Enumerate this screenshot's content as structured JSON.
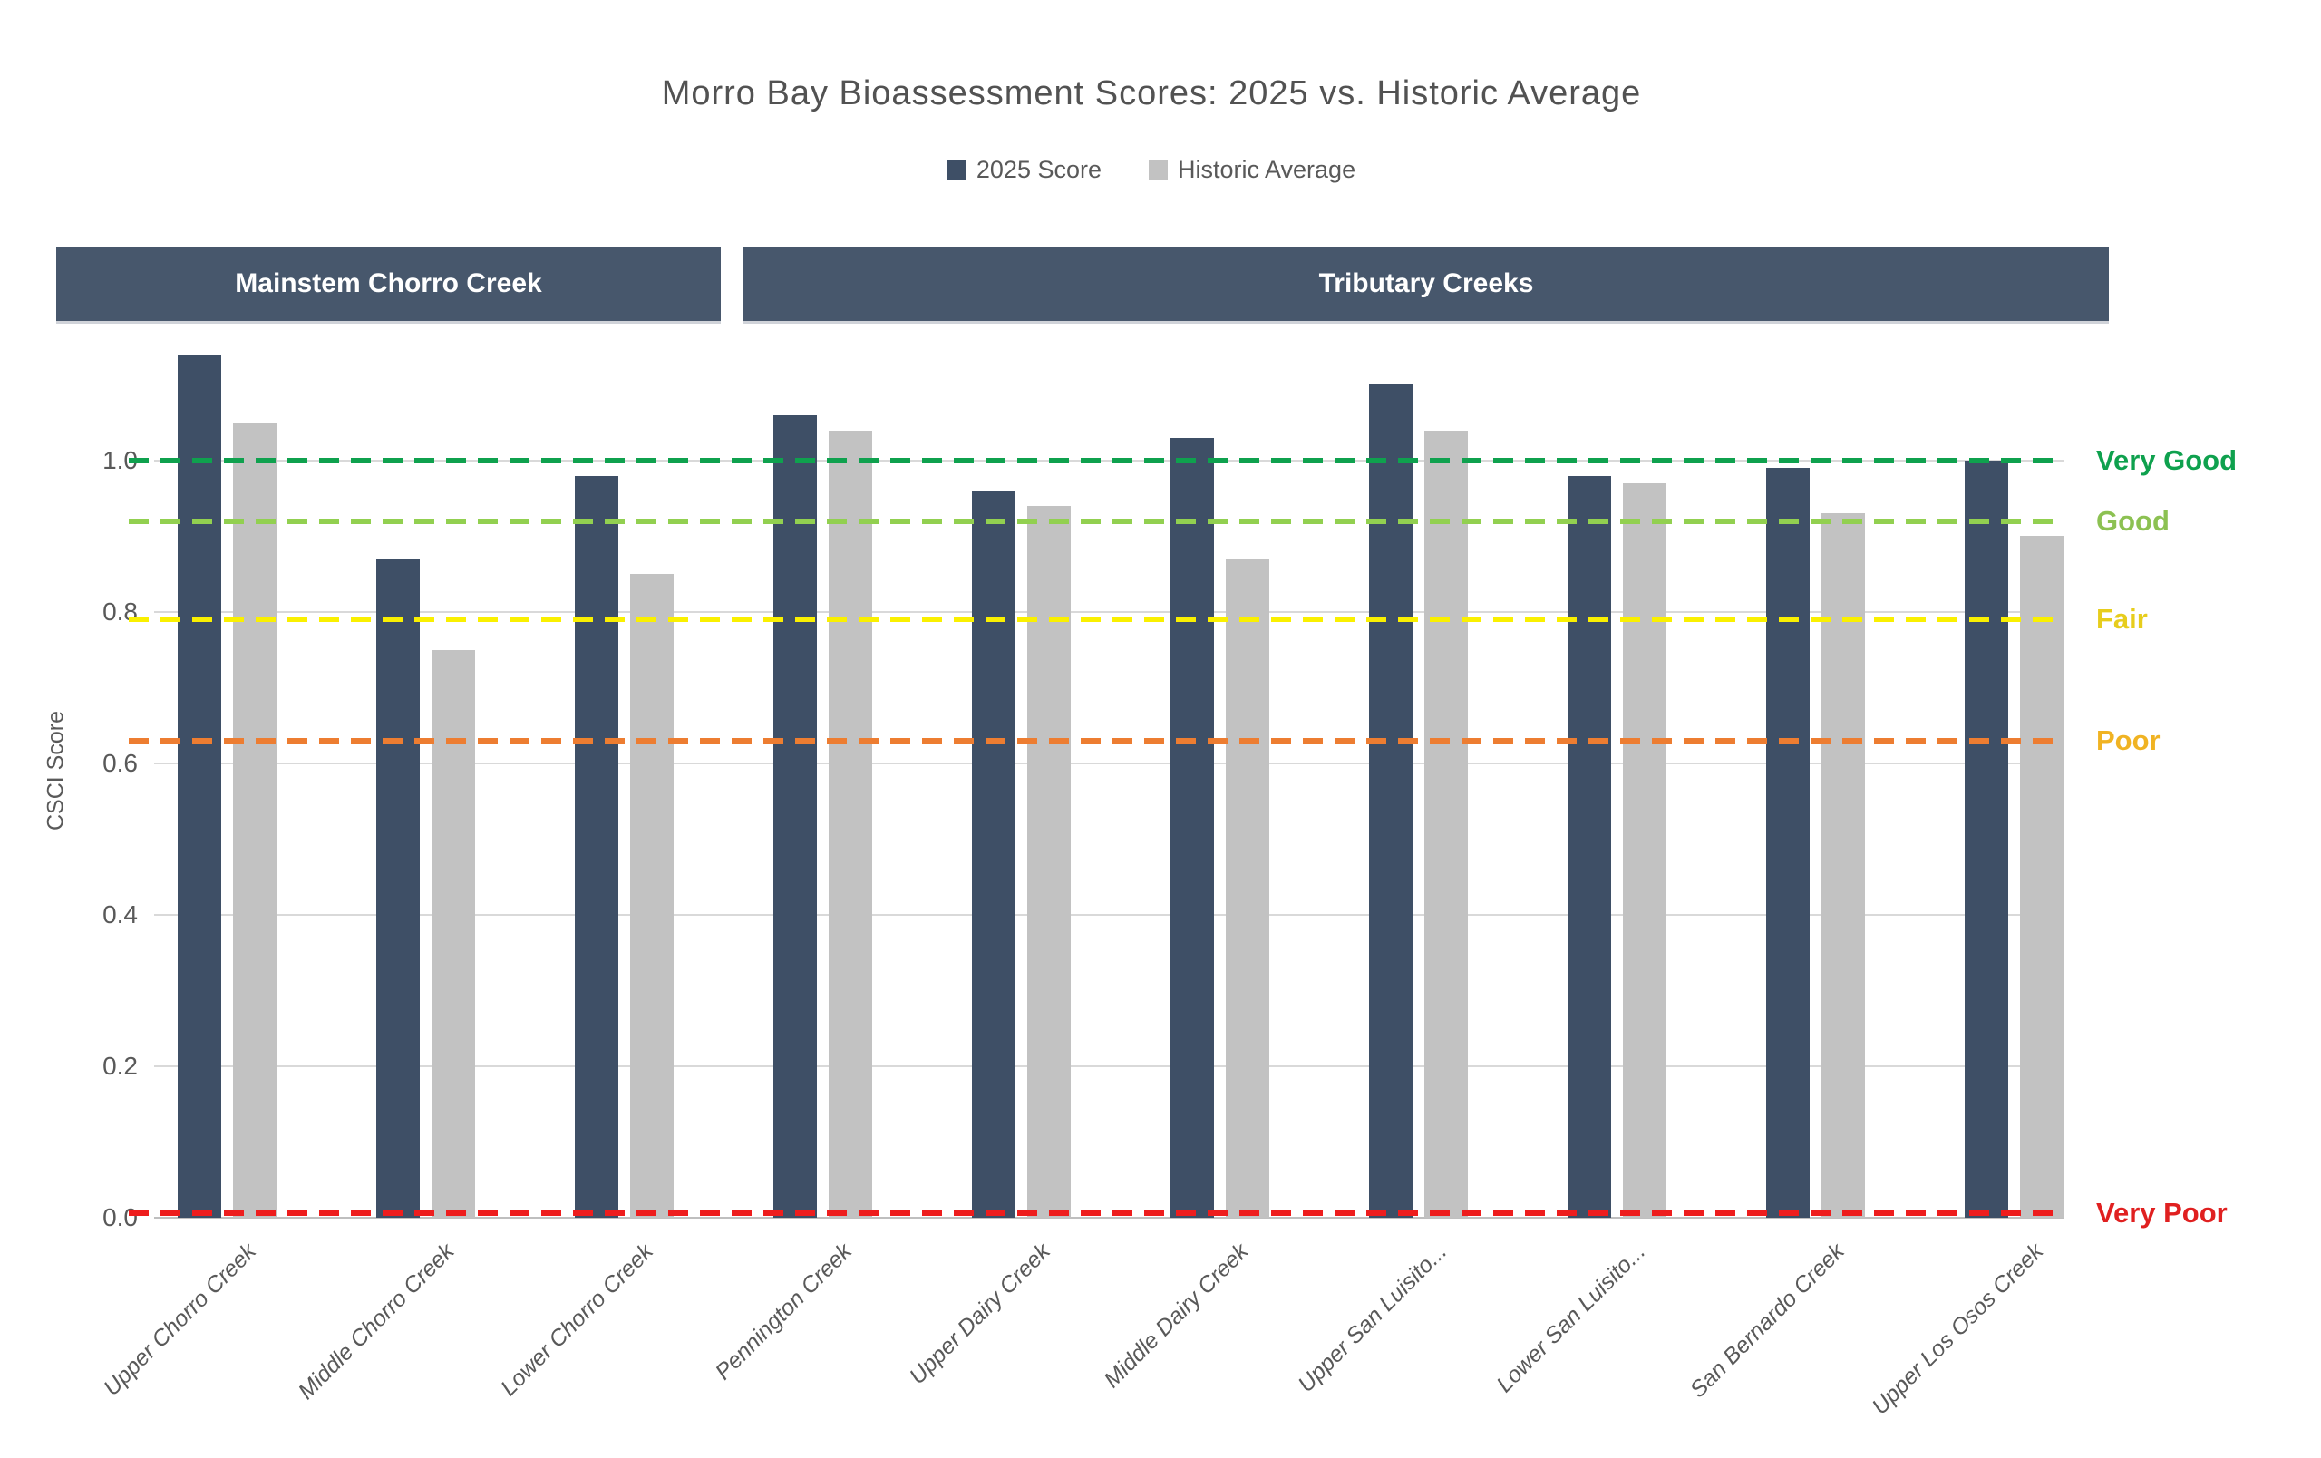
{
  "title": "Morro Bay Bioassessment Scores: 2025 vs. Historic Average",
  "legend": {
    "items": [
      {
        "label": "2025 Score",
        "color": "#3E4F66"
      },
      {
        "label": "Historic Average",
        "color": "#C2C2C2"
      }
    ]
  },
  "bands": [
    {
      "label": "Mainstem Chorro Creek",
      "category_span": [
        0,
        2
      ]
    },
    {
      "label": "Tributary Creeks",
      "category_span": [
        3,
        9
      ]
    }
  ],
  "chart_data": {
    "type": "bar",
    "title": "Morro Bay Bioassessment Scores: 2025 vs. Historic Average",
    "xlabel": "",
    "ylabel": "CSCI Score",
    "ylim": [
      0.0,
      1.2
    ],
    "yticks": [
      0.0,
      0.2,
      0.4,
      0.6,
      0.8,
      1.0
    ],
    "grid": true,
    "legend_position": "top",
    "categories": [
      "Upper Chorro Creek",
      "Middle Chorro Creek",
      "Lower Chorro Creek",
      "Pennington Creek",
      "Upper Dairy Creek",
      "Middle Dairy Creek",
      "Upper San Luisito...",
      "Lower San Luisito...",
      "San Bernardo Creek",
      "Upper Los Osos Creek"
    ],
    "series": [
      {
        "name": "2025 Score",
        "color": "#3E4F66",
        "values": [
          1.14,
          0.87,
          0.98,
          1.06,
          0.96,
          1.03,
          1.1,
          0.98,
          0.99,
          1.0
        ]
      },
      {
        "name": "Historic Average",
        "color": "#C2C2C2",
        "values": [
          1.05,
          0.75,
          0.85,
          1.04,
          0.94,
          0.87,
          1.04,
          0.97,
          0.93,
          0.9
        ]
      }
    ],
    "thresholds": [
      {
        "label": "Very Good",
        "value": 1.0,
        "line_color": "#0FA14E",
        "label_color": "#0FA14E"
      },
      {
        "label": "Good",
        "value": 0.92,
        "line_color": "#92D050",
        "label_color": "#8CC152"
      },
      {
        "label": "Fair",
        "value": 0.79,
        "line_color": "#FAF000",
        "label_color": "#E7CD1C"
      },
      {
        "label": "Poor",
        "value": 0.63,
        "line_color": "#ED7D31",
        "label_color": "#F0B323"
      },
      {
        "label": "Very Poor",
        "value": 0.0,
        "line_color": "#EE1D1D",
        "label_color": "#E02020"
      }
    ]
  }
}
